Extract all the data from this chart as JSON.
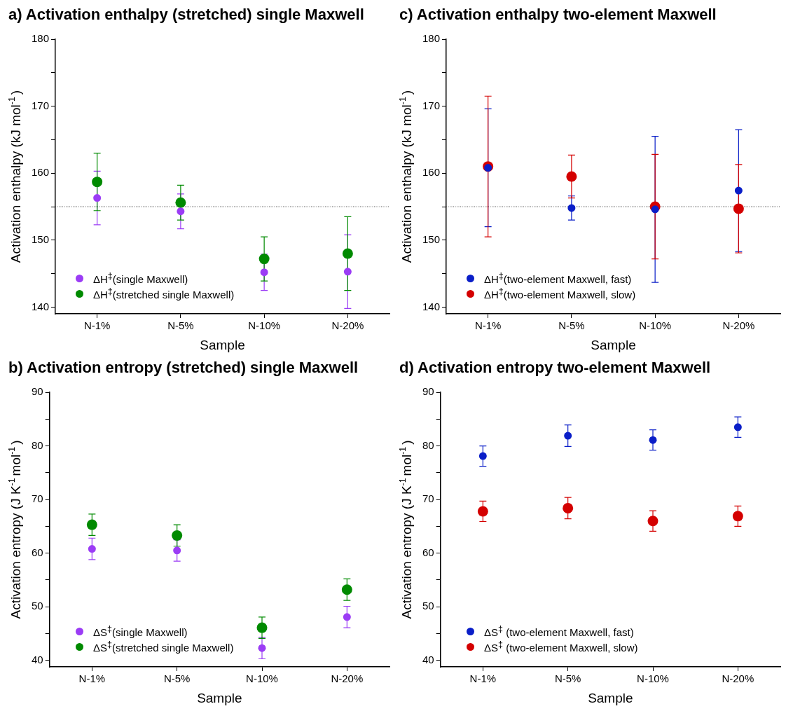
{
  "chart_data": [
    {
      "type": "scatter",
      "title": "a) Activation enthalpy (stretched) single Maxwell",
      "xlabel": "Sample",
      "ylabel": "Activation enthalpy (kJ mol$^{-1}$)",
      "categories": [
        "N-1%",
        "N-5%",
        "N-10%",
        "N-20%"
      ],
      "series": [
        {
          "name": "ΔH$^{‡}$(single Maxwell)",
          "color": "#9b3cf5",
          "values": [
            156.3,
            154.3,
            145.2,
            145.3
          ],
          "errors": [
            4,
            2.6,
            2.7,
            5.5
          ]
        },
        {
          "name": "ΔH$^{‡}$(stretched single Maxwell)",
          "color": "#008a00",
          "values": [
            158.7,
            155.6,
            147.2,
            148
          ],
          "errors": [
            4.3,
            2.6,
            3.3,
            5.5
          ]
        }
      ],
      "ylim": [
        139,
        180
      ],
      "yticks": [
        140,
        {
          "value": 145,
          "label": null
        },
        150,
        {
          "value": 155,
          "label": null
        },
        160,
        {
          "value": 165,
          "label": null
        },
        170,
        {
          "value": 175,
          "label": null
        },
        180
      ],
      "ref_lines": [
        {
          "axis": "y",
          "value": 155,
          "color": "#555555",
          "line_style": "dotted"
        }
      ],
      "grid": false,
      "legend": "bottom left",
      "marker": "circle"
    },
    {
      "type": "scatter",
      "title": "b) Activation entropy (stretched) single Maxwell",
      "xlabel": "Sample",
      "ylabel": "Activation entropy (J K$^{-1}$mol$^{-1}$)",
      "categories": [
        "N-1%",
        "N-5%",
        "N-10%",
        "N-20%"
      ],
      "series": [
        {
          "name": "ΔS$^{‡}$(single Maxwell)",
          "color": "#9b3cf5",
          "values": [
            60.8,
            60.5,
            42.3,
            48.1
          ],
          "errors": [
            2,
            2,
            2,
            2
          ]
        },
        {
          "name": "ΔS$^{‡}$(stretched single Maxwell)",
          "color": "#008a00",
          "values": [
            65.3,
            63.3,
            46.1,
            53.2
          ],
          "errors": [
            2,
            2,
            2,
            2
          ]
        }
      ],
      "ylim": [
        38.8,
        90
      ],
      "yticks": [
        40,
        {
          "value": 45,
          "label": null
        },
        50,
        {
          "value": 55,
          "label": null
        },
        60,
        {
          "value": 65,
          "label": null
        },
        70,
        {
          "value": 75,
          "label": null
        },
        80,
        {
          "value": 85,
          "label": null
        },
        90
      ],
      "grid": false,
      "legend": "bottom left",
      "marker": "circle"
    },
    {
      "type": "scatter",
      "title": "c) Activation enthalpy two-element Maxwell",
      "xlabel": "Sample",
      "ylabel": "Activation enthalpy (kJ mol$^{-1}$)",
      "categories": [
        "N-1%",
        "N-5%",
        "N-10%",
        "N-20%"
      ],
      "series": [
        {
          "name": "ΔH$^{‡}$(two-element Maxwell, fast)",
          "color": "#0a1ec8",
          "values": [
            160.8,
            154.8,
            154.6,
            157.4
          ],
          "errors": [
            8.8,
            1.8,
            10.9,
            9.1
          ]
        },
        {
          "name": "ΔH$^{‡}$(two-element Maxwell, slow)",
          "color": "#d40000",
          "values": [
            161,
            159.5,
            155,
            154.7
          ],
          "errors": [
            10.5,
            3.2,
            7.8,
            6.6
          ]
        }
      ],
      "ylim": [
        139,
        180
      ],
      "yticks": [
        140,
        {
          "value": 145,
          "label": null
        },
        150,
        {
          "value": 155,
          "label": null
        },
        160,
        {
          "value": 165,
          "label": null
        },
        170,
        {
          "value": 175,
          "label": null
        },
        180
      ],
      "ref_lines": [
        {
          "axis": "y",
          "value": 155,
          "color": "#555555",
          "line_style": "dotted"
        }
      ],
      "grid": false,
      "legend": "bottom left",
      "marker": "circle"
    },
    {
      "type": "scatter",
      "title": "d) Activation entropy two-element Maxwell",
      "xlabel": "Sample",
      "ylabel": "Activation entropy (J K$^{-1}$mol$^{-1}$)",
      "categories": [
        "N-1%",
        "N-5%",
        "N-10%",
        "N-20%"
      ],
      "series": [
        {
          "name": "ΔS$^{‡}$ (two-element Maxwell, fast)",
          "color": "#0a1ec8",
          "values": [
            78.1,
            81.9,
            81.1,
            83.5
          ],
          "errors": [
            1.9,
            2,
            1.9,
            1.9
          ]
        },
        {
          "name": "ΔS$^{‡}$ (two-element Maxwell, slow)",
          "color": "#d40000",
          "values": [
            67.8,
            68.4,
            66,
            66.9
          ],
          "errors": [
            1.9,
            2,
            1.9,
            1.9
          ]
        }
      ],
      "ylim": [
        38.8,
        90
      ],
      "yticks": [
        40,
        {
          "value": 45,
          "label": null
        },
        50,
        {
          "value": 55,
          "label": null
        },
        60,
        {
          "value": 65,
          "label": null
        },
        70,
        {
          "value": 75,
          "label": null
        },
        80,
        {
          "value": 85,
          "label": null
        },
        90
      ],
      "grid": false,
      "legend": "bottom left",
      "marker": "circle"
    }
  ]
}
